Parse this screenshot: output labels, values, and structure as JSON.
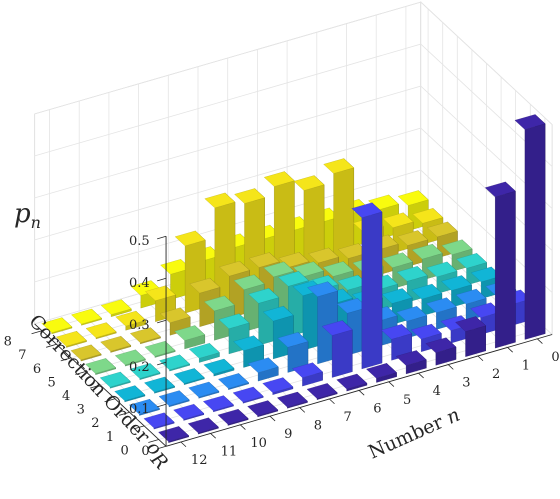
{
  "chart_data": {
    "type": "bar3d",
    "title": "",
    "xlabel": "Number n",
    "xlabel_text": "Number ",
    "xlabel_var": "n",
    "ylabel": "Correction Order o_R",
    "ylabel_text": "Correction Order ",
    "ylabel_var": "o",
    "ylabel_sub": "R",
    "zlabel": "p_n",
    "zlabel_var": "p",
    "zlabel_sub": "n",
    "x_ticks": [
      0,
      1,
      2,
      3,
      4,
      5,
      6,
      7,
      8,
      9,
      10,
      11,
      12
    ],
    "y_ticks": [
      0,
      1,
      2,
      3,
      4,
      5,
      6,
      7,
      8
    ],
    "z_ticks": [
      0,
      0.1,
      0.2,
      0.3,
      0.4,
      0.5
    ],
    "zlim": [
      0,
      0.5
    ],
    "grid": true,
    "colormap": "parula (by correction order)",
    "series": [
      {
        "order": 0,
        "values": [
          0.5,
          0.36,
          0.06,
          0.03,
          0.02,
          0.01,
          0.005,
          0,
          0,
          0,
          0,
          0,
          0
        ]
      },
      {
        "order": 1,
        "values": [
          0.05,
          0.04,
          0.03,
          0.03,
          0.05,
          0.36,
          0.1,
          0.02,
          0.005,
          0,
          0,
          0,
          0
        ]
      },
      {
        "order": 2,
        "values": [
          0.04,
          0.04,
          0.04,
          0.04,
          0.06,
          0.1,
          0.16,
          0.06,
          0.02,
          0,
          0,
          0,
          0
        ]
      },
      {
        "order": 3,
        "values": [
          0.04,
          0.04,
          0.04,
          0.05,
          0.07,
          0.09,
          0.13,
          0.09,
          0.04,
          0.005,
          0,
          0,
          0
        ]
      },
      {
        "order": 4,
        "values": [
          0.04,
          0.04,
          0.05,
          0.05,
          0.07,
          0.09,
          0.12,
          0.1,
          0.06,
          0.01,
          0,
          0,
          0
        ]
      },
      {
        "order": 5,
        "values": [
          0.04,
          0.05,
          0.05,
          0.06,
          0.07,
          0.09,
          0.11,
          0.1,
          0.07,
          0.02,
          0,
          0,
          0
        ]
      },
      {
        "order": 6,
        "values": [
          0.05,
          0.05,
          0.06,
          0.06,
          0.07,
          0.08,
          0.1,
          0.1,
          0.08,
          0.03,
          0,
          0,
          0
        ]
      },
      {
        "order": 7,
        "values": [
          0.05,
          0.06,
          0.07,
          0.23,
          0.21,
          0.24,
          0.22,
          0.23,
          0.16,
          0.05,
          0.01,
          0,
          0
        ]
      },
      {
        "order": 8,
        "values": [
          0.06,
          0.07,
          0.08,
          0.08,
          0.08,
          0.08,
          0.08,
          0.07,
          0.06,
          0.03,
          0.005,
          0,
          0
        ]
      }
    ],
    "series_colors": [
      "#3e26a8",
      "#4747f2",
      "#2b8cf2",
      "#11b5d6",
      "#2ed3cc",
      "#7ed88a",
      "#d9c62c",
      "#f5e51a",
      "#f9fb0e"
    ]
  }
}
